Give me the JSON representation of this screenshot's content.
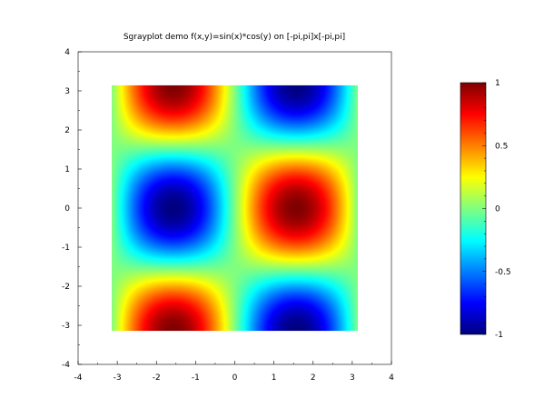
{
  "chart_data": {
    "type": "heatmap",
    "title": "Sgrayplot demo f(x,y)=sin(x)*cos(y) on [-pi,pi]x[-pi,pi]",
    "function": "sin(x)*cos(y)",
    "x_domain": [
      -3.14159,
      3.14159
    ],
    "y_domain": [
      -3.14159,
      3.14159
    ],
    "xlim": [
      -4,
      4
    ],
    "ylim": [
      -4,
      4
    ],
    "x_ticks": [
      -4,
      -3,
      -2,
      -1,
      0,
      1,
      2,
      3,
      4
    ],
    "y_ticks": [
      -4,
      -3,
      -2,
      -1,
      0,
      1,
      2,
      3,
      4
    ],
    "x_tick_labels": [
      "-4",
      "-3",
      "-2",
      "-1",
      "0",
      "1",
      "2",
      "3",
      "4"
    ],
    "y_tick_labels": [
      "-4",
      "-3",
      "-2",
      "-1",
      "0",
      "1",
      "2",
      "3",
      "4"
    ],
    "colormap": "jet",
    "colorbar": {
      "range": [
        -1,
        1
      ],
      "ticks": [
        -1,
        -0.5,
        0,
        0.5,
        1
      ],
      "tick_labels": [
        "-1",
        "-0.5",
        "0",
        "0.5",
        "1"
      ]
    },
    "grid": false
  }
}
